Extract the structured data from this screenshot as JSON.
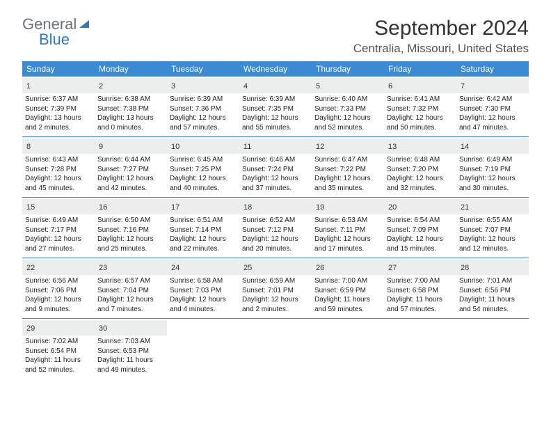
{
  "logo": {
    "text1": "General",
    "text2": "Blue"
  },
  "title": "September 2024",
  "location": "Centralia, Missouri, United States",
  "colors": {
    "header_bg": "#3b8bd4",
    "header_text": "#ffffff",
    "daynum_bg": "#eceeee",
    "border": "#3b8bd4",
    "title_color": "#333333",
    "location_color": "#555555"
  },
  "day_names": [
    "Sunday",
    "Monday",
    "Tuesday",
    "Wednesday",
    "Thursday",
    "Friday",
    "Saturday"
  ],
  "weeks": [
    [
      {
        "day": "1",
        "sunrise": "Sunrise: 6:37 AM",
        "sunset": "Sunset: 7:39 PM",
        "daylight1": "Daylight: 13 hours",
        "daylight2": "and 2 minutes."
      },
      {
        "day": "2",
        "sunrise": "Sunrise: 6:38 AM",
        "sunset": "Sunset: 7:38 PM",
        "daylight1": "Daylight: 13 hours",
        "daylight2": "and 0 minutes."
      },
      {
        "day": "3",
        "sunrise": "Sunrise: 6:39 AM",
        "sunset": "Sunset: 7:36 PM",
        "daylight1": "Daylight: 12 hours",
        "daylight2": "and 57 minutes."
      },
      {
        "day": "4",
        "sunrise": "Sunrise: 6:39 AM",
        "sunset": "Sunset: 7:35 PM",
        "daylight1": "Daylight: 12 hours",
        "daylight2": "and 55 minutes."
      },
      {
        "day": "5",
        "sunrise": "Sunrise: 6:40 AM",
        "sunset": "Sunset: 7:33 PM",
        "daylight1": "Daylight: 12 hours",
        "daylight2": "and 52 minutes."
      },
      {
        "day": "6",
        "sunrise": "Sunrise: 6:41 AM",
        "sunset": "Sunset: 7:32 PM",
        "daylight1": "Daylight: 12 hours",
        "daylight2": "and 50 minutes."
      },
      {
        "day": "7",
        "sunrise": "Sunrise: 6:42 AM",
        "sunset": "Sunset: 7:30 PM",
        "daylight1": "Daylight: 12 hours",
        "daylight2": "and 47 minutes."
      }
    ],
    [
      {
        "day": "8",
        "sunrise": "Sunrise: 6:43 AM",
        "sunset": "Sunset: 7:28 PM",
        "daylight1": "Daylight: 12 hours",
        "daylight2": "and 45 minutes."
      },
      {
        "day": "9",
        "sunrise": "Sunrise: 6:44 AM",
        "sunset": "Sunset: 7:27 PM",
        "daylight1": "Daylight: 12 hours",
        "daylight2": "and 42 minutes."
      },
      {
        "day": "10",
        "sunrise": "Sunrise: 6:45 AM",
        "sunset": "Sunset: 7:25 PM",
        "daylight1": "Daylight: 12 hours",
        "daylight2": "and 40 minutes."
      },
      {
        "day": "11",
        "sunrise": "Sunrise: 6:46 AM",
        "sunset": "Sunset: 7:24 PM",
        "daylight1": "Daylight: 12 hours",
        "daylight2": "and 37 minutes."
      },
      {
        "day": "12",
        "sunrise": "Sunrise: 6:47 AM",
        "sunset": "Sunset: 7:22 PM",
        "daylight1": "Daylight: 12 hours",
        "daylight2": "and 35 minutes."
      },
      {
        "day": "13",
        "sunrise": "Sunrise: 6:48 AM",
        "sunset": "Sunset: 7:20 PM",
        "daylight1": "Daylight: 12 hours",
        "daylight2": "and 32 minutes."
      },
      {
        "day": "14",
        "sunrise": "Sunrise: 6:49 AM",
        "sunset": "Sunset: 7:19 PM",
        "daylight1": "Daylight: 12 hours",
        "daylight2": "and 30 minutes."
      }
    ],
    [
      {
        "day": "15",
        "sunrise": "Sunrise: 6:49 AM",
        "sunset": "Sunset: 7:17 PM",
        "daylight1": "Daylight: 12 hours",
        "daylight2": "and 27 minutes."
      },
      {
        "day": "16",
        "sunrise": "Sunrise: 6:50 AM",
        "sunset": "Sunset: 7:16 PM",
        "daylight1": "Daylight: 12 hours",
        "daylight2": "and 25 minutes."
      },
      {
        "day": "17",
        "sunrise": "Sunrise: 6:51 AM",
        "sunset": "Sunset: 7:14 PM",
        "daylight1": "Daylight: 12 hours",
        "daylight2": "and 22 minutes."
      },
      {
        "day": "18",
        "sunrise": "Sunrise: 6:52 AM",
        "sunset": "Sunset: 7:12 PM",
        "daylight1": "Daylight: 12 hours",
        "daylight2": "and 20 minutes."
      },
      {
        "day": "19",
        "sunrise": "Sunrise: 6:53 AM",
        "sunset": "Sunset: 7:11 PM",
        "daylight1": "Daylight: 12 hours",
        "daylight2": "and 17 minutes."
      },
      {
        "day": "20",
        "sunrise": "Sunrise: 6:54 AM",
        "sunset": "Sunset: 7:09 PM",
        "daylight1": "Daylight: 12 hours",
        "daylight2": "and 15 minutes."
      },
      {
        "day": "21",
        "sunrise": "Sunrise: 6:55 AM",
        "sunset": "Sunset: 7:07 PM",
        "daylight1": "Daylight: 12 hours",
        "daylight2": "and 12 minutes."
      }
    ],
    [
      {
        "day": "22",
        "sunrise": "Sunrise: 6:56 AM",
        "sunset": "Sunset: 7:06 PM",
        "daylight1": "Daylight: 12 hours",
        "daylight2": "and 9 minutes."
      },
      {
        "day": "23",
        "sunrise": "Sunrise: 6:57 AM",
        "sunset": "Sunset: 7:04 PM",
        "daylight1": "Daylight: 12 hours",
        "daylight2": "and 7 minutes."
      },
      {
        "day": "24",
        "sunrise": "Sunrise: 6:58 AM",
        "sunset": "Sunset: 7:03 PM",
        "daylight1": "Daylight: 12 hours",
        "daylight2": "and 4 minutes."
      },
      {
        "day": "25",
        "sunrise": "Sunrise: 6:59 AM",
        "sunset": "Sunset: 7:01 PM",
        "daylight1": "Daylight: 12 hours",
        "daylight2": "and 2 minutes."
      },
      {
        "day": "26",
        "sunrise": "Sunrise: 7:00 AM",
        "sunset": "Sunset: 6:59 PM",
        "daylight1": "Daylight: 11 hours",
        "daylight2": "and 59 minutes."
      },
      {
        "day": "27",
        "sunrise": "Sunrise: 7:00 AM",
        "sunset": "Sunset: 6:58 PM",
        "daylight1": "Daylight: 11 hours",
        "daylight2": "and 57 minutes."
      },
      {
        "day": "28",
        "sunrise": "Sunrise: 7:01 AM",
        "sunset": "Sunset: 6:56 PM",
        "daylight1": "Daylight: 11 hours",
        "daylight2": "and 54 minutes."
      }
    ],
    [
      {
        "day": "29",
        "sunrise": "Sunrise: 7:02 AM",
        "sunset": "Sunset: 6:54 PM",
        "daylight1": "Daylight: 11 hours",
        "daylight2": "and 52 minutes."
      },
      {
        "day": "30",
        "sunrise": "Sunrise: 7:03 AM",
        "sunset": "Sunset: 6:53 PM",
        "daylight1": "Daylight: 11 hours",
        "daylight2": "and 49 minutes."
      },
      null,
      null,
      null,
      null,
      null
    ]
  ]
}
